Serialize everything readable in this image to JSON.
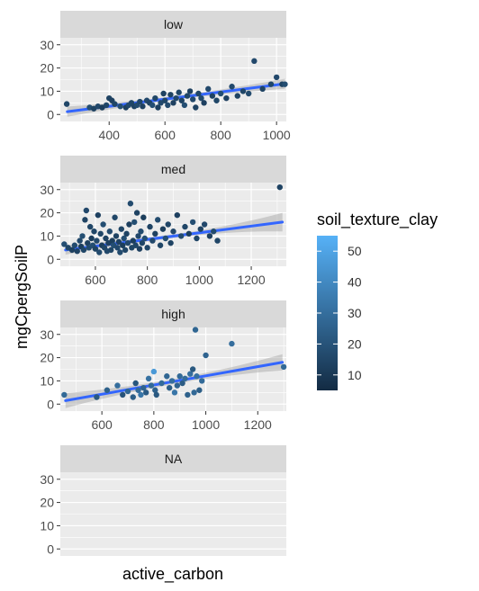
{
  "chart_data": {
    "type": "scatter",
    "facet_variable": "",
    "xlabel": "active_carbon",
    "ylabel": "mgCpergSoilP",
    "color_label": "soil_texture_clay",
    "color_range": [
      5,
      55
    ],
    "color_ticks": [
      10,
      20,
      30,
      40,
      50
    ],
    "color_low": "#132B43",
    "color_high": "#56B1F7",
    "smooth_color": "#3366FF",
    "ribbon_color": "#999999",
    "panel_bg": "#EBEBEB",
    "strip_bg": "#D9D9D9",
    "panels": [
      {
        "label": "low",
        "xlim": [
          225,
          1035
        ],
        "ylim": [
          -3,
          33
        ],
        "xticks": [
          400,
          600,
          800,
          1000
        ],
        "yticks": [
          0,
          10,
          20,
          30
        ],
        "fit": {
          "x0": 250,
          "y0": 1.2,
          "x1": 1030,
          "y1": 13.2,
          "se0": 2.2,
          "se1": 2.2,
          "semid": 0.8
        },
        "points": [
          [
            248,
            4.5,
            15
          ],
          [
            330,
            3,
            18
          ],
          [
            345,
            2.5,
            14
          ],
          [
            360,
            3.5,
            16
          ],
          [
            375,
            3,
            12
          ],
          [
            390,
            4,
            15
          ],
          [
            400,
            7,
            14
          ],
          [
            410,
            6,
            13
          ],
          [
            420,
            4.5,
            15
          ],
          [
            440,
            3.5,
            18
          ],
          [
            460,
            3,
            13
          ],
          [
            470,
            4,
            16
          ],
          [
            480,
            5,
            15
          ],
          [
            490,
            3.5,
            14
          ],
          [
            500,
            4,
            17
          ],
          [
            510,
            5.5,
            15
          ],
          [
            520,
            3.5,
            13
          ],
          [
            535,
            6,
            16
          ],
          [
            545,
            5,
            14
          ],
          [
            555,
            4,
            18
          ],
          [
            565,
            7,
            15
          ],
          [
            575,
            3,
            13
          ],
          [
            585,
            5,
            16
          ],
          [
            595,
            9,
            14
          ],
          [
            600,
            6,
            15
          ],
          [
            610,
            4,
            17
          ],
          [
            620,
            8.5,
            14
          ],
          [
            630,
            5,
            13
          ],
          [
            640,
            7,
            16
          ],
          [
            650,
            9.5,
            15
          ],
          [
            660,
            6,
            14
          ],
          [
            670,
            4,
            18
          ],
          [
            680,
            8,
            15
          ],
          [
            690,
            10,
            13
          ],
          [
            700,
            6.5,
            16
          ],
          [
            710,
            3,
            14
          ],
          [
            720,
            9,
            15
          ],
          [
            730,
            7,
            17
          ],
          [
            740,
            5,
            13
          ],
          [
            755,
            11,
            16
          ],
          [
            770,
            8,
            14
          ],
          [
            785,
            6,
            15
          ],
          [
            800,
            9,
            18
          ],
          [
            820,
            7,
            13
          ],
          [
            840,
            12,
            16
          ],
          [
            860,
            8,
            14
          ],
          [
            880,
            10,
            15
          ],
          [
            900,
            9,
            17
          ],
          [
            920,
            23,
            16
          ],
          [
            950,
            11,
            14
          ],
          [
            980,
            13,
            15
          ],
          [
            1000,
            16,
            16
          ],
          [
            1020,
            13,
            14
          ],
          [
            1030,
            13,
            18
          ]
        ]
      },
      {
        "label": "med",
        "xlim": [
          465,
          1335
        ],
        "ylim": [
          -3,
          33
        ],
        "xticks": [
          600,
          800,
          1000,
          1200
        ],
        "yticks": [
          0,
          10,
          20,
          30
        ],
        "fit": {
          "x0": 485,
          "y0": 4.0,
          "x1": 1320,
          "y1": 16.0,
          "se0": 2.0,
          "se1": 4.0,
          "semid": 0.8
        },
        "points": [
          [
            480,
            6.5,
            18
          ],
          [
            495,
            5,
            15
          ],
          [
            510,
            4,
            13
          ],
          [
            520,
            6,
            17
          ],
          [
            530,
            3.5,
            14
          ],
          [
            540,
            8,
            16
          ],
          [
            545,
            5.5,
            12
          ],
          [
            550,
            10,
            18
          ],
          [
            555,
            4,
            15
          ],
          [
            560,
            17,
            14
          ],
          [
            565,
            21,
            16
          ],
          [
            570,
            7,
            13
          ],
          [
            575,
            5,
            17
          ],
          [
            580,
            14,
            15
          ],
          [
            585,
            9,
            12
          ],
          [
            590,
            6,
            18
          ],
          [
            595,
            12,
            15
          ],
          [
            600,
            4.5,
            14
          ],
          [
            605,
            8,
            16
          ],
          [
            610,
            19,
            13
          ],
          [
            615,
            3,
            17
          ],
          [
            620,
            11,
            15
          ],
          [
            625,
            6,
            12
          ],
          [
            630,
            15,
            18
          ],
          [
            635,
            5,
            15
          ],
          [
            640,
            9,
            14
          ],
          [
            645,
            3.5,
            16
          ],
          [
            650,
            7,
            13
          ],
          [
            655,
            12,
            17
          ],
          [
            660,
            4,
            15
          ],
          [
            665,
            8,
            12
          ],
          [
            670,
            6,
            18
          ],
          [
            675,
            18,
            15
          ],
          [
            680,
            10,
            14
          ],
          [
            685,
            5,
            16
          ],
          [
            690,
            7.5,
            13
          ],
          [
            695,
            3,
            17
          ],
          [
            700,
            13,
            15
          ],
          [
            705,
            6,
            12
          ],
          [
            710,
            9,
            18
          ],
          [
            715,
            4,
            15
          ],
          [
            720,
            11,
            14
          ],
          [
            725,
            7,
            16
          ],
          [
            730,
            15,
            13
          ],
          [
            735,
            24,
            17
          ],
          [
            740,
            5,
            15
          ],
          [
            745,
            8,
            12
          ],
          [
            750,
            16,
            18
          ],
          [
            755,
            6,
            15
          ],
          [
            760,
            20,
            14
          ],
          [
            765,
            10,
            16
          ],
          [
            770,
            4.5,
            13
          ],
          [
            775,
            12,
            17
          ],
          [
            780,
            7,
            15
          ],
          [
            785,
            18,
            12
          ],
          [
            790,
            9,
            18
          ],
          [
            800,
            5,
            15
          ],
          [
            810,
            14,
            14
          ],
          [
            820,
            8,
            16
          ],
          [
            830,
            11,
            13
          ],
          [
            840,
            17,
            17
          ],
          [
            850,
            6,
            15
          ],
          [
            860,
            13,
            12
          ],
          [
            870,
            9,
            18
          ],
          [
            880,
            15,
            15
          ],
          [
            890,
            7,
            14
          ],
          [
            900,
            12,
            16
          ],
          [
            915,
            19,
            13
          ],
          [
            930,
            10,
            17
          ],
          [
            945,
            14,
            15
          ],
          [
            960,
            11,
            12
          ],
          [
            975,
            16,
            18
          ],
          [
            990,
            9,
            15
          ],
          [
            1005,
            13,
            14
          ],
          [
            1020,
            15,
            16
          ],
          [
            1040,
            10,
            13
          ],
          [
            1055,
            12,
            17
          ],
          [
            1070,
            8,
            15
          ],
          [
            1310,
            31,
            14
          ]
        ]
      },
      {
        "label": "high",
        "xlim": [
          440,
          1310
        ],
        "ylim": [
          -3,
          33
        ],
        "xticks": [
          600,
          800,
          1000,
          1200
        ],
        "yticks": [
          0,
          10,
          20,
          30
        ],
        "fit": {
          "x0": 460,
          "y0": 1.5,
          "x1": 1295,
          "y1": 18.0,
          "se0": 3.2,
          "se1": 3.5,
          "semid": 1.1
        },
        "points": [
          [
            455,
            4,
            28
          ],
          [
            580,
            3,
            22
          ],
          [
            620,
            6,
            25
          ],
          [
            660,
            8,
            30
          ],
          [
            680,
            4,
            20
          ],
          [
            700,
            5.5,
            27
          ],
          [
            720,
            3,
            24
          ],
          [
            730,
            9,
            21
          ],
          [
            740,
            6,
            29
          ],
          [
            750,
            4,
            33
          ],
          [
            760,
            7,
            26
          ],
          [
            770,
            5,
            23
          ],
          [
            780,
            11,
            31
          ],
          [
            790,
            8,
            28
          ],
          [
            800,
            14,
            46
          ],
          [
            805,
            6,
            25
          ],
          [
            810,
            4,
            22
          ],
          [
            830,
            9,
            29
          ],
          [
            850,
            12,
            27
          ],
          [
            860,
            7,
            24
          ],
          [
            870,
            10,
            30
          ],
          [
            880,
            5,
            33
          ],
          [
            890,
            8,
            26
          ],
          [
            900,
            12,
            28
          ],
          [
            910,
            9,
            23
          ],
          [
            920,
            11,
            29
          ],
          [
            930,
            4,
            25
          ],
          [
            940,
            13,
            30
          ],
          [
            950,
            15,
            22
          ],
          [
            955,
            5,
            28
          ],
          [
            960,
            32,
            27
          ],
          [
            965,
            12,
            31
          ],
          [
            975,
            6,
            24
          ],
          [
            985,
            10,
            29
          ],
          [
            1000,
            21,
            26
          ],
          [
            1100,
            26,
            30
          ],
          [
            1300,
            16,
            28
          ]
        ]
      },
      {
        "label": "NA",
        "xlim": [
          0,
          1
        ],
        "ylim": [
          -3,
          33
        ],
        "xticks": [],
        "yticks": [
          0,
          10,
          20,
          30
        ],
        "fit": null,
        "points": []
      }
    ]
  }
}
